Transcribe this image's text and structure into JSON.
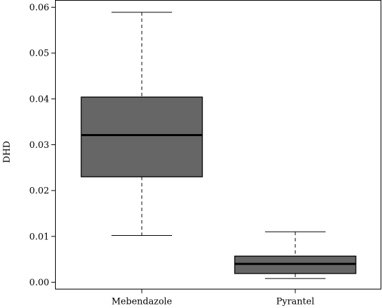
{
  "chart_data": {
    "type": "boxplot",
    "title": "",
    "xlabel": "",
    "ylabel": "DHD",
    "ylim": [
      -0.0015,
      0.0615
    ],
    "yticks": [
      "0.00",
      "0.01",
      "0.02",
      "0.03",
      "0.04",
      "0.05",
      "0.06"
    ],
    "ytick_values": [
      0.0,
      0.01,
      0.02,
      0.03,
      0.04,
      0.05,
      0.06
    ],
    "categories": [
      "Mebendazole",
      "Pyrantel"
    ],
    "boxes": [
      {
        "label": "Mebendazole",
        "min": 0.0102,
        "q1": 0.023,
        "median": 0.0321,
        "q3": 0.0404,
        "max": 0.0589
      },
      {
        "label": "Pyrantel",
        "min": 0.0008,
        "q1": 0.0019,
        "median": 0.004,
        "q3": 0.0057,
        "max": 0.011
      }
    ],
    "box_fill": "#666666",
    "grid": false
  }
}
